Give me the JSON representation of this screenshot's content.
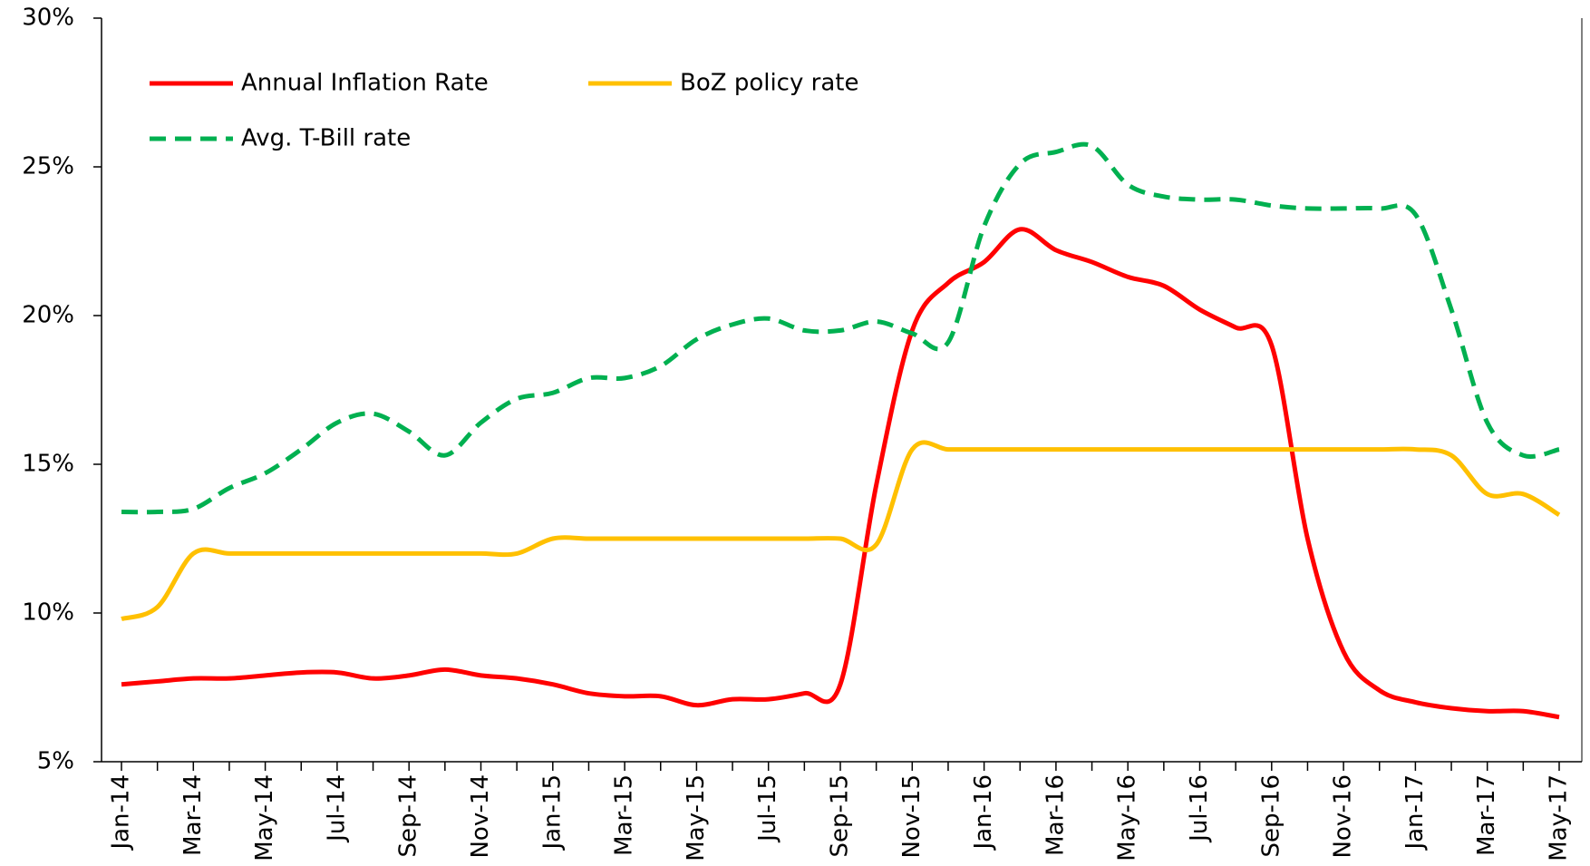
{
  "chart_data": {
    "type": "line",
    "categories": [
      "Jan-14",
      null,
      "Mar-14",
      null,
      "May-14",
      null,
      "Jul-14",
      null,
      "Sep-14",
      null,
      "Nov-14",
      null,
      "Jan-15",
      null,
      "Mar-15",
      null,
      "May-15",
      null,
      "Jul-15",
      null,
      "Sep-15",
      null,
      "Nov-15",
      null,
      "Jan-16",
      null,
      "Mar-16",
      null,
      "May-16",
      null,
      "Jul-16",
      null,
      "Sep-16",
      null,
      "Nov-16",
      null,
      "Jan-17",
      null,
      "Mar-17",
      null,
      "May-17"
    ],
    "series": [
      {
        "name": "Annual Inflation Rate",
        "color": "#ff0000",
        "style": "solid",
        "values": [
          7.6,
          7.7,
          7.8,
          7.8,
          7.9,
          8.0,
          8.0,
          7.8,
          7.9,
          8.1,
          7.9,
          7.8,
          7.6,
          7.3,
          7.2,
          7.2,
          6.9,
          7.1,
          7.1,
          7.3,
          7.6,
          14.3,
          19.5,
          21.1,
          21.8,
          22.9,
          22.2,
          21.8,
          21.3,
          21.0,
          20.2,
          19.6,
          19.0,
          12.5,
          8.7,
          7.4,
          7.0,
          6.8,
          6.7,
          6.7,
          6.5
        ]
      },
      {
        "name": "BoZ policy rate",
        "color": "#ffc000",
        "style": "solid",
        "values": [
          9.8,
          10.2,
          12.0,
          12.0,
          12.0,
          12.0,
          12.0,
          12.0,
          12.0,
          12.0,
          12.0,
          12.0,
          12.5,
          12.5,
          12.5,
          12.5,
          12.5,
          12.5,
          12.5,
          12.5,
          12.5,
          12.3,
          15.5,
          15.5,
          15.5,
          15.5,
          15.5,
          15.5,
          15.5,
          15.5,
          15.5,
          15.5,
          15.5,
          15.5,
          15.5,
          15.5,
          15.5,
          15.3,
          14.0,
          14.0,
          13.3
        ]
      },
      {
        "name": "Avg. T-Bill rate",
        "color": "#00b050",
        "style": "dashed",
        "values": [
          13.4,
          13.4,
          13.5,
          14.2,
          14.7,
          15.5,
          16.4,
          16.7,
          16.1,
          15.3,
          16.4,
          17.2,
          17.4,
          17.9,
          17.9,
          18.3,
          19.2,
          19.7,
          19.9,
          19.5,
          19.5,
          19.8,
          19.4,
          19.1,
          23.0,
          25.1,
          25.5,
          25.7,
          24.4,
          24.0,
          23.9,
          23.9,
          23.7,
          23.6,
          23.6,
          23.6,
          23.4,
          20.2,
          16.4,
          15.3,
          15.5
        ]
      }
    ],
    "ylim": [
      5,
      30
    ],
    "yticks": [
      {
        "value": 5,
        "label": "5%"
      },
      {
        "value": 10,
        "label": "10%"
      },
      {
        "value": 15,
        "label": "15%"
      },
      {
        "value": 20,
        "label": "20%"
      },
      {
        "value": 25,
        "label": "25%"
      },
      {
        "value": 30,
        "label": "30%"
      }
    ],
    "grid": false,
    "legend": "top-left"
  }
}
